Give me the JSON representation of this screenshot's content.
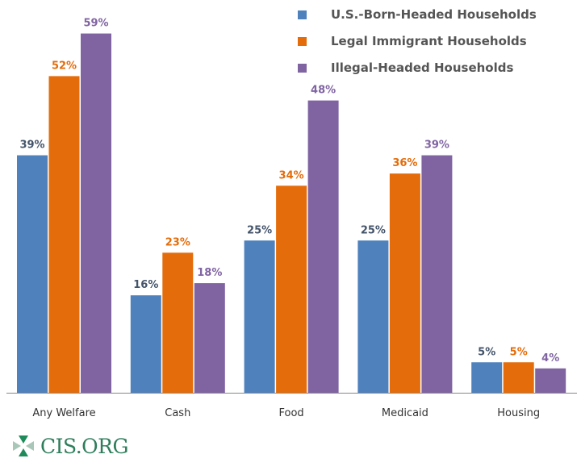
{
  "chart_data": {
    "type": "bar",
    "categories": [
      "Any Welfare",
      "Cash",
      "Food",
      "Medicaid",
      "Housing"
    ],
    "series": [
      {
        "name": "U.S.-Born-Headed Households",
        "values": [
          39,
          16,
          25,
          25,
          5
        ],
        "color": "#4f81bd",
        "label_color": "#44546a"
      },
      {
        "name": "Legal Immigrant Households",
        "values": [
          52,
          23,
          34,
          36,
          5
        ],
        "color": "#e46c0a",
        "label_color": "#e46c0a"
      },
      {
        "name": "Illegal-Headed Households",
        "values": [
          59,
          18,
          48,
          39,
          4
        ],
        "color": "#8064a2",
        "label_color": "#8064a2"
      }
    ],
    "value_suffix": "%",
    "ylim": [
      0,
      60
    ],
    "grid": false,
    "legend": "top-right",
    "title": "",
    "xlabel": "",
    "ylabel": ""
  },
  "logo": {
    "text": "CIS.ORG",
    "color": "#2e7d5b"
  }
}
